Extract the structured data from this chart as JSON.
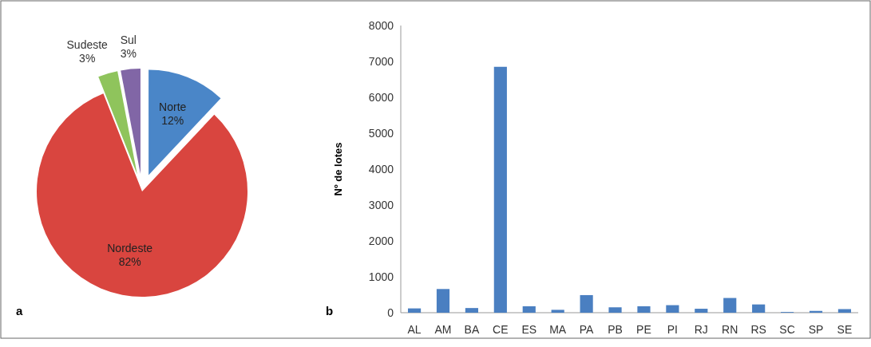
{
  "chart_data": [
    {
      "type": "pie",
      "categories": [
        "Norte",
        "Nordeste",
        "Sudeste",
        "Sul"
      ],
      "values": [
        12,
        82,
        3,
        3
      ],
      "colors": [
        "#4a86c8",
        "#d9453f",
        "#8fc45c",
        "#8166a6"
      ],
      "value_labels": [
        "12%",
        "82%",
        "3%",
        "3%"
      ],
      "annotations": [
        "a"
      ]
    },
    {
      "type": "bar",
      "categories": [
        "AL",
        "AM",
        "BA",
        "CE",
        "ES",
        "MA",
        "PA",
        "PB",
        "PE",
        "PI",
        "RJ",
        "RN",
        "RS",
        "SC",
        "SP",
        "SE"
      ],
      "values": [
        120,
        660,
        130,
        6850,
        180,
        80,
        490,
        150,
        180,
        210,
        110,
        410,
        230,
        20,
        50,
        100
      ],
      "color": "#4a7fc1",
      "ylabel": "Nº de lotes",
      "ylim": [
        0,
        8000
      ],
      "yticks": [
        0,
        1000,
        2000,
        3000,
        4000,
        5000,
        6000,
        7000,
        8000
      ],
      "grid": false,
      "annotations": [
        "b"
      ]
    }
  ]
}
